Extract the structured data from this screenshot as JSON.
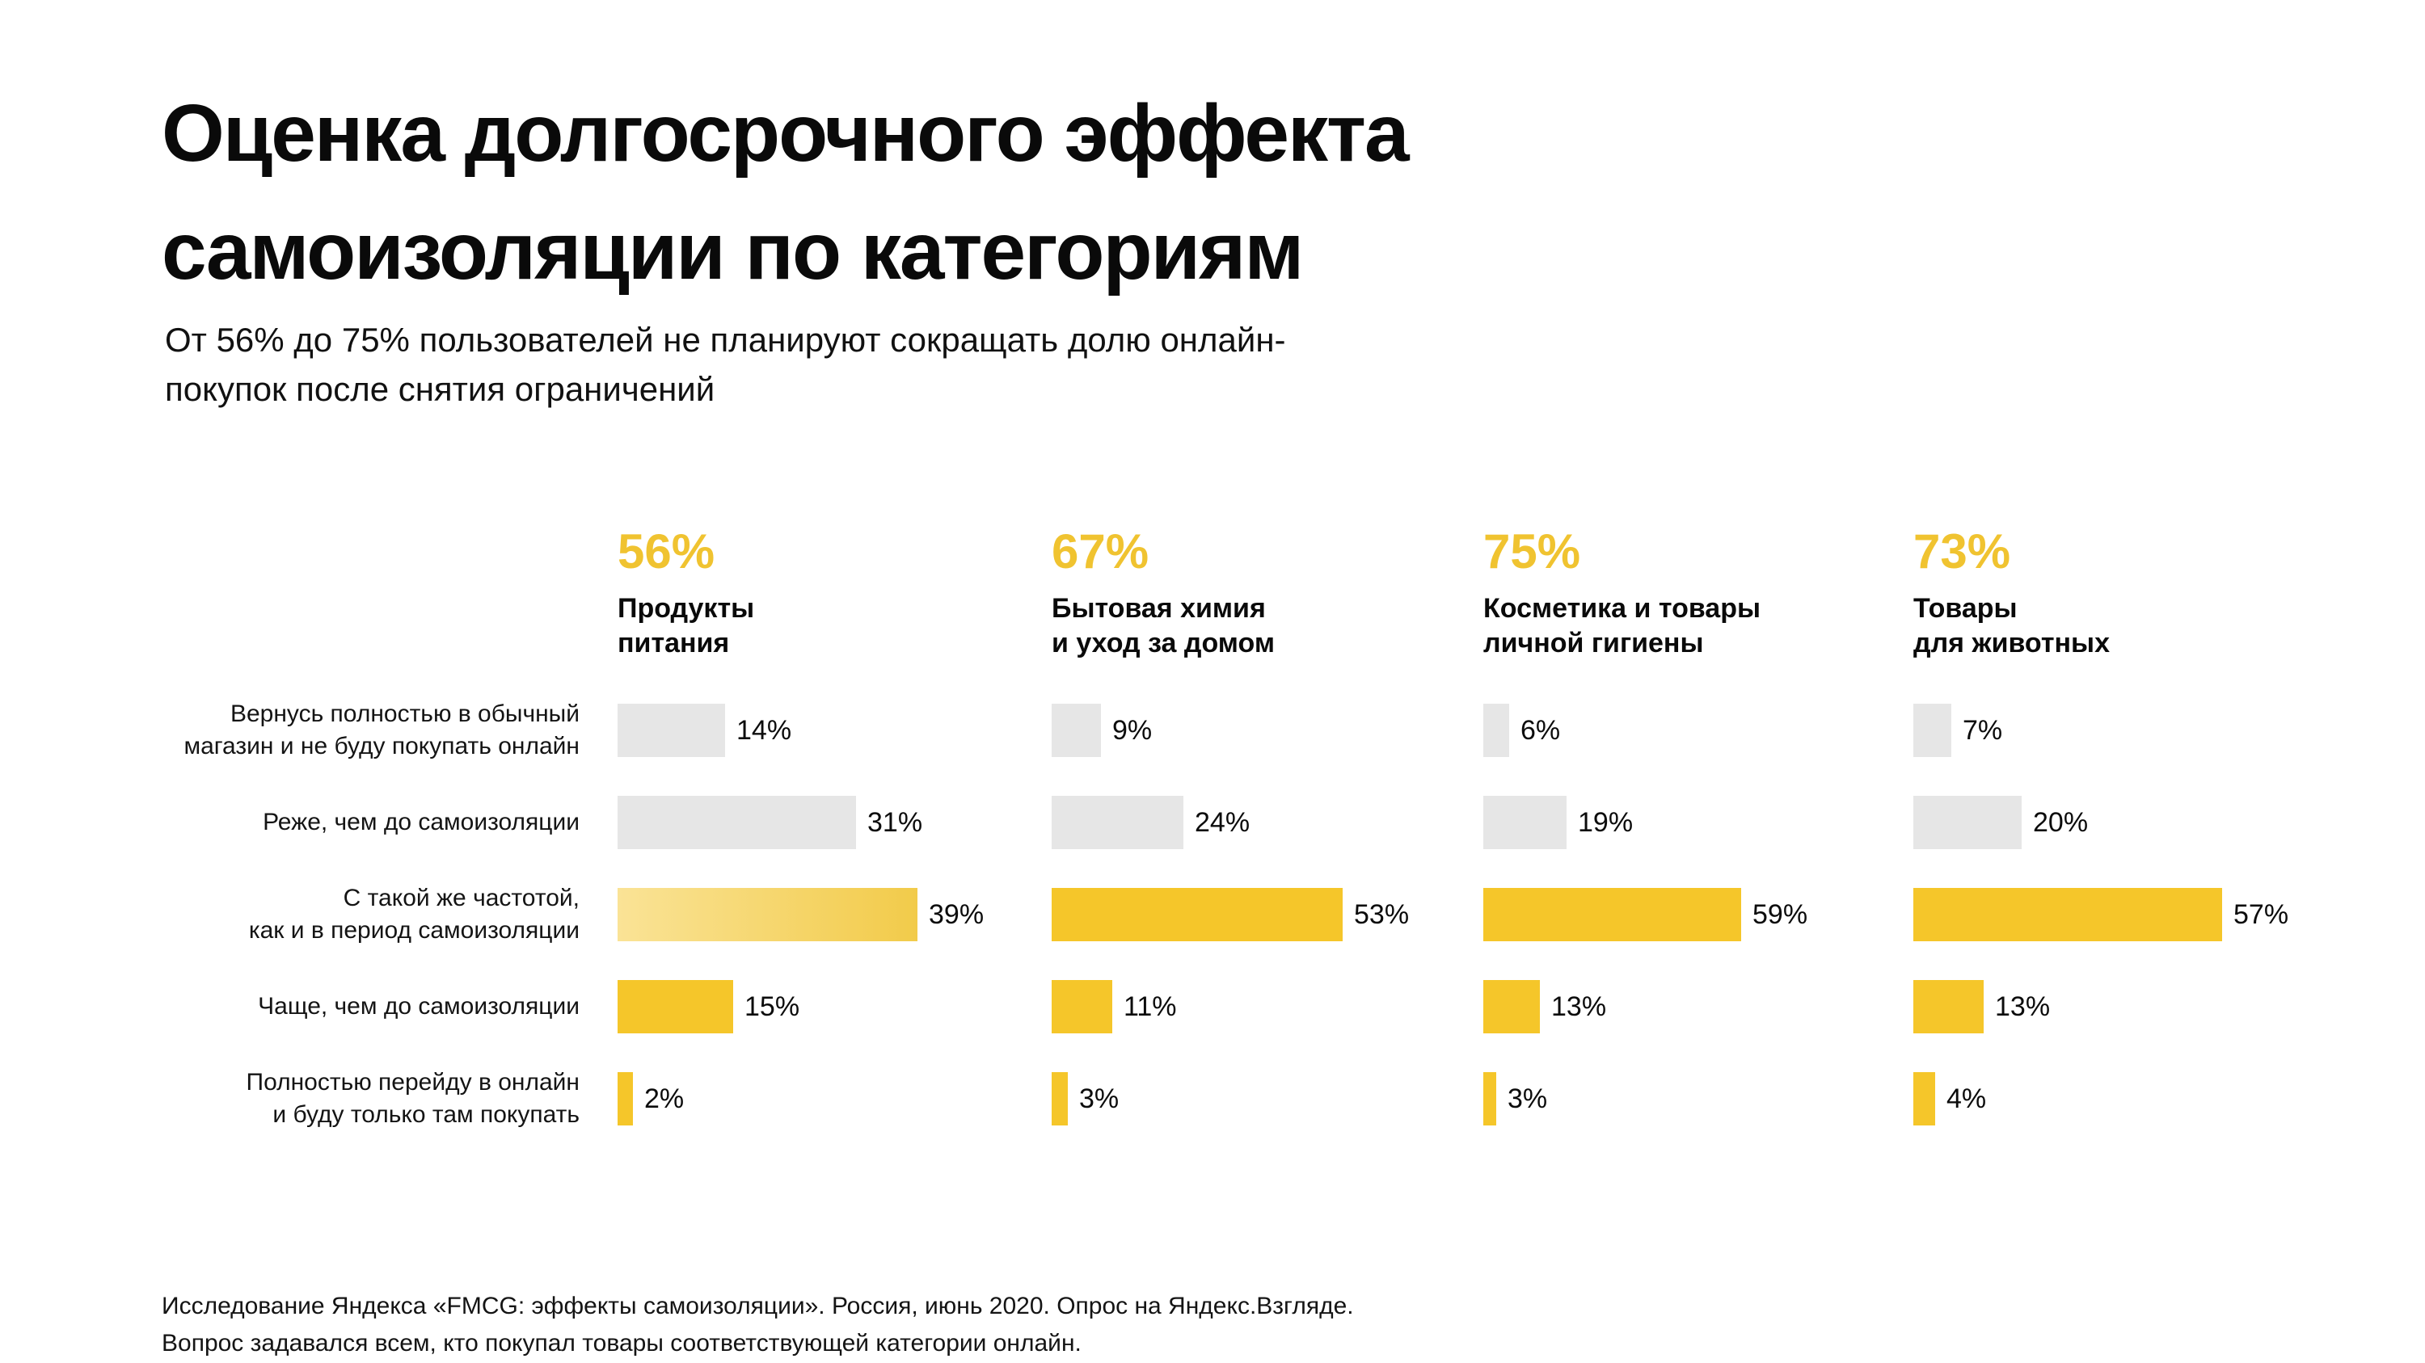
{
  "page": {
    "title_lines": [
      "Оценка долгосрочного эффекта",
      "самоизоляции по категориям"
    ],
    "subtitle_lines": [
      "От 56% до 75% пользователей не планируют сокращать долю онлайн-",
      "покупок после снятия ограничений"
    ],
    "footer_lines": [
      "Исследование Яндекса «FMCG: эффекты самоизоляции». Россия, июнь 2020. Опрос на Яндекс.Взгляде.",
      "Вопрос задавался всем, кто покупал товары соответствующей категории онлайн."
    ]
  },
  "colors": {
    "accent_yellow": "#F0C330",
    "bar_yellow": "#F5C62A",
    "bar_yellow_light_start": "#FAE396",
    "bar_yellow_light_end": "#F2CB4A",
    "bar_gray": "#E6E6E6",
    "text_black": "#0C0C0C"
  },
  "chart_data": {
    "type": "bar",
    "orientation": "horizontal",
    "value_suffix": "%",
    "value_range": [
      0,
      100
    ],
    "grid": false,
    "legend": "none",
    "row_labels": [
      [
        "Вернусь полностью в обычный",
        "магазин и не буду покупать онлайн"
      ],
      [
        "Реже, чем до самоизоляции"
      ],
      [
        "С такой же частотой,",
        "как и в период самоизоляции"
      ],
      [
        "Чаще, чем до самоизоляции"
      ],
      [
        "Полностью перейду в онлайн",
        "и буду только там покупать"
      ]
    ],
    "bar_color_by_row": [
      "gray",
      "gray",
      "yellow",
      "yellow",
      "yellow"
    ],
    "special_light_bar": {
      "column": 0,
      "row": 2
    },
    "columns": [
      {
        "headline_pct": "56%",
        "name_lines": [
          "Продукты",
          "питания"
        ],
        "values": [
          14,
          31,
          39,
          15,
          2
        ]
      },
      {
        "headline_pct": "67%",
        "name_lines": [
          "Бытовая химия",
          "и уход за домом"
        ],
        "values": [
          9,
          24,
          53,
          11,
          3
        ]
      },
      {
        "headline_pct": "75%",
        "name_lines": [
          "Косметика и товары",
          "личной гигиены"
        ],
        "values": [
          6,
          19,
          59,
          13,
          3
        ]
      },
      {
        "headline_pct": "73%",
        "name_lines": [
          "Товары",
          "для животных"
        ],
        "values": [
          7,
          20,
          57,
          13,
          4
        ]
      }
    ]
  }
}
